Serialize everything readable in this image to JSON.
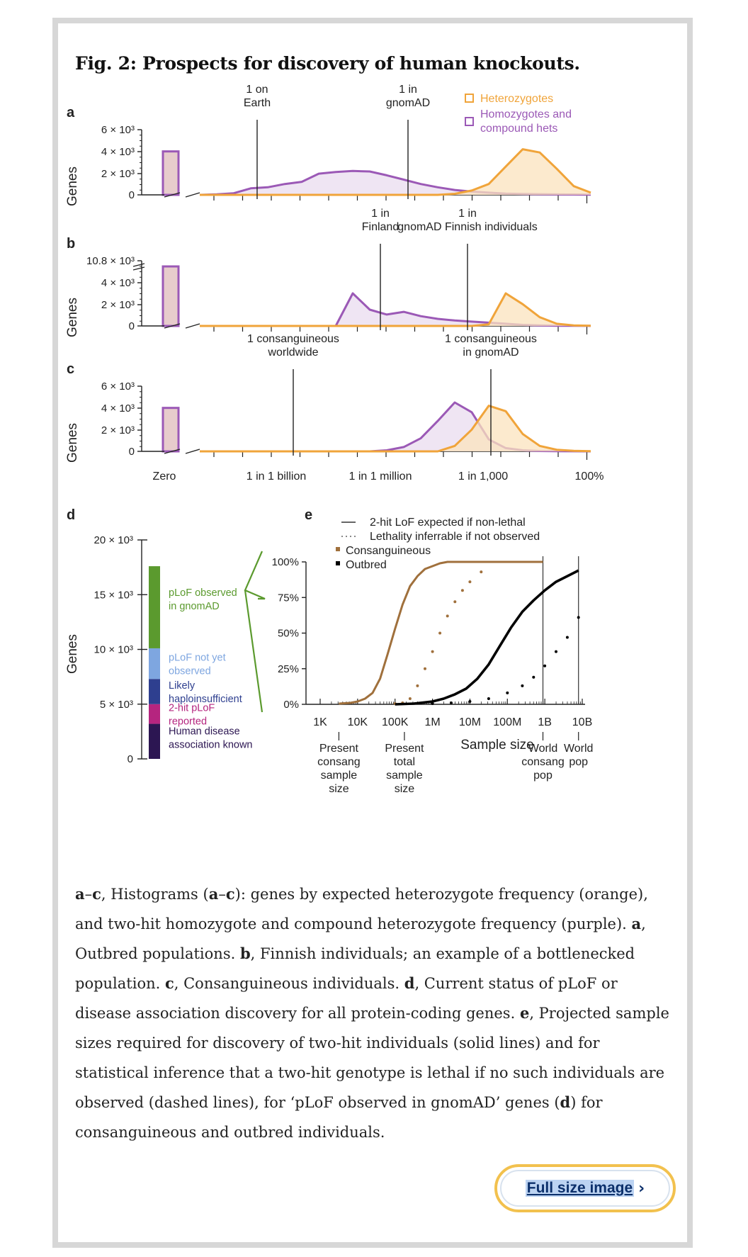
{
  "figure": {
    "title": "Fig. 2: Prospects for discovery of human knockouts.",
    "colors": {
      "heterozygote": "#f0a43a",
      "heterozygote_fill": "#fbe3bd",
      "homozygote": "#9b59b6",
      "homozygote_fill": "#e9dcef",
      "zero_bar_fill": "#e7cccc",
      "consanguineous": "#a0703c",
      "outbred": "#000000",
      "plof_observed": "#5b9a2e",
      "plof_not_yet": "#7ea6e0",
      "haploinsufficient": "#2e3f8f",
      "two_hit": "#b5257f",
      "disease_known": "#2c1652"
    },
    "panel_labels": [
      "a",
      "b",
      "c",
      "d",
      "e"
    ],
    "ylabel": "Genes",
    "legend_abc": [
      "Heterozygotes",
      "Homozygotes and",
      "compound hets"
    ]
  },
  "chart_data": [
    {
      "panel": "a",
      "type": "area",
      "ylabel": "Genes",
      "yticks": [
        "6 × 10³",
        "4 × 10³",
        "2 × 10³",
        "0"
      ],
      "ylim": [
        0,
        6000
      ],
      "zero_bar": 4000,
      "annotations": [
        {
          "lines": [
            "1 on",
            "Earth"
          ],
          "at": 1.35
        },
        {
          "lines": [
            "1 in",
            "gnomAD"
          ],
          "at": 4.9
        }
      ],
      "x": [
        0,
        0.4,
        0.8,
        1.2,
        1.6,
        2.0,
        2.4,
        2.8,
        3.2,
        3.6,
        4.0,
        4.4,
        4.8,
        5.2,
        5.6,
        6.0,
        6.4,
        6.8,
        7.2,
        7.6,
        8.0,
        8.4,
        8.8,
        9.2
      ],
      "series": [
        {
          "name": "Homozygotes and compound hets",
          "values": [
            0,
            50,
            150,
            600,
            700,
            1000,
            1200,
            1950,
            2100,
            2200,
            2150,
            1800,
            1400,
            1000,
            700,
            450,
            300,
            200,
            120,
            80,
            60,
            40,
            30,
            20
          ]
        },
        {
          "name": "Heterozygotes",
          "values": [
            0,
            0,
            0,
            0,
            0,
            0,
            0,
            0,
            0,
            0,
            0,
            0,
            0,
            0,
            0,
            100,
            400,
            1000,
            2600,
            4200,
            3900,
            2400,
            800,
            200
          ]
        }
      ]
    },
    {
      "panel": "b",
      "type": "area",
      "ylabel": "Genes",
      "yticks": [
        "10.8 × 10³",
        "4 × 10³",
        "2 × 10³",
        "0"
      ],
      "ylim": [
        0,
        6000
      ],
      "zero_bar": 10800,
      "annotations": [
        {
          "lines": [
            "1 in",
            "Finland"
          ],
          "at": 4.25
        },
        {
          "lines": [
            "1 in",
            "gnomAD Finnish individuals"
          ],
          "at": 6.3
        }
      ],
      "x": [
        0,
        0.4,
        0.8,
        1.2,
        1.6,
        2.0,
        2.4,
        2.8,
        3.2,
        3.6,
        4.0,
        4.4,
        4.8,
        5.2,
        5.6,
        6.0,
        6.4,
        6.8,
        7.2,
        7.6,
        8.0,
        8.4,
        8.8,
        9.2
      ],
      "series": [
        {
          "name": "Homozygotes and compound hets",
          "values": [
            0,
            0,
            0,
            0,
            0,
            0,
            0,
            0,
            0,
            3000,
            1500,
            1050,
            1300,
            900,
            650,
            500,
            400,
            300,
            200,
            100,
            50,
            20,
            10,
            5
          ]
        },
        {
          "name": "Heterozygotes",
          "values": [
            0,
            0,
            0,
            0,
            0,
            0,
            0,
            0,
            0,
            0,
            0,
            0,
            0,
            0,
            0,
            0,
            0,
            150,
            3000,
            2000,
            800,
            200,
            50,
            10
          ]
        }
      ]
    },
    {
      "panel": "c",
      "type": "area",
      "ylabel": "Genes",
      "yticks": [
        "6 × 10³",
        "4 × 10³",
        "2 × 10³",
        "0"
      ],
      "ylim": [
        0,
        6000
      ],
      "zero_bar": 4000,
      "annotations": [
        {
          "lines": [
            "1 consanguineous",
            "worldwide"
          ],
          "at": 2.2
        },
        {
          "lines": [
            "1 consanguineous",
            "in gnomAD"
          ],
          "at": 6.85
        }
      ],
      "x": [
        0,
        0.4,
        0.8,
        1.2,
        1.6,
        2.0,
        2.4,
        2.8,
        3.2,
        3.6,
        4.0,
        4.4,
        4.8,
        5.2,
        5.6,
        6.0,
        6.4,
        6.8,
        7.2,
        7.6,
        8.0,
        8.4,
        8.8,
        9.2
      ],
      "series": [
        {
          "name": "Homozygotes and compound hets",
          "values": [
            0,
            0,
            0,
            0,
            0,
            0,
            0,
            0,
            0,
            0,
            0,
            100,
            400,
            1200,
            2800,
            4500,
            3600,
            1100,
            300,
            100,
            30,
            10,
            5,
            0
          ]
        },
        {
          "name": "Heterozygotes",
          "values": [
            0,
            0,
            0,
            0,
            0,
            0,
            0,
            0,
            0,
            0,
            0,
            0,
            0,
            0,
            0,
            500,
            2000,
            4200,
            3700,
            1600,
            500,
            150,
            50,
            10
          ]
        }
      ],
      "xtick_labels": [
        "Zero",
        "1 in 1 billion",
        "1 in 1 million",
        "1 in 1,000",
        "100%"
      ]
    },
    {
      "panel": "d",
      "type": "bar",
      "ylabel": "Genes",
      "yticks": [
        "20 × 10³",
        "15 × 10³",
        "10 × 10³",
        "5 × 10³",
        "0"
      ],
      "ylim": [
        0,
        20000
      ],
      "segments": [
        {
          "name": "Human disease association known",
          "value": 3200
        },
        {
          "name": "2-hit pLoF reported",
          "value": 1800
        },
        {
          "name": "Likely haploinsufficient",
          "value": 2300
        },
        {
          "name": "pLoF not yet observed",
          "value": 2800
        },
        {
          "name": "pLoF observed in gnomAD",
          "value": 7500
        }
      ],
      "segment_labels": [
        {
          "lines": [
            "Human disease",
            "association known"
          ]
        },
        {
          "lines": [
            "2-hit pLoF",
            "reported"
          ]
        },
        {
          "lines": [
            "Likely",
            "haploinsufficient"
          ]
        },
        {
          "lines": [
            "pLoF not yet",
            "observed"
          ]
        },
        {
          "lines": [
            "pLoF observed",
            "in gnomAD"
          ]
        }
      ]
    },
    {
      "panel": "e",
      "type": "line",
      "xlabel": "Sample size",
      "yticks": [
        "100%",
        "75%",
        "50%",
        "25%",
        "0%"
      ],
      "xtick_labels": [
        "1K",
        "10K",
        "100K",
        "1M",
        "10M",
        "100M",
        "1B",
        "10B"
      ],
      "xscale": "log",
      "ylim": [
        0,
        100
      ],
      "legend": [
        {
          "name": "2-hit LoF expected if non-lethal",
          "style": "solid line"
        },
        {
          "name": "Lethality inferrable if not observed",
          "style": "dotted line"
        },
        {
          "name": "Consanguineous",
          "style": "square"
        },
        {
          "name": "Outbred",
          "style": "square"
        }
      ],
      "bottom_annotations": [
        {
          "lines": [
            "Present",
            "consang",
            "sample",
            "size"
          ],
          "at_log10": 3.5
        },
        {
          "lines": [
            "Present",
            "total",
            "sample",
            "size"
          ],
          "at_log10": 5.25
        },
        {
          "lines": [
            "World",
            "consang",
            "pop"
          ],
          "at_log10": 8.95
        },
        {
          "lines": [
            "World",
            "pop"
          ],
          "at_log10": 9.9
        }
      ],
      "series": [
        {
          "name": "Consanguineous 2-hit LoF expected",
          "style": "solid",
          "x": [
            3.5,
            3.8,
            4.0,
            4.2,
            4.4,
            4.6,
            4.8,
            5.0,
            5.2,
            5.4,
            5.6,
            5.8,
            6.0,
            6.2,
            6.4,
            6.6,
            7.0,
            8.0,
            8.95
          ],
          "y": [
            0.5,
            1,
            2,
            4,
            8,
            18,
            35,
            53,
            70,
            83,
            90,
            95,
            97,
            99,
            100,
            100,
            100,
            100,
            100
          ]
        },
        {
          "name": "Consanguineous lethality inferrable",
          "style": "dotted",
          "x": [
            5.0,
            5.2,
            5.4,
            5.6,
            5.8,
            6.0,
            6.2,
            6.4,
            6.6,
            6.8,
            7.0,
            7.3
          ],
          "y": [
            0.5,
            1,
            4,
            13,
            25,
            37,
            50,
            62,
            72,
            80,
            86,
            93
          ]
        },
        {
          "name": "Outbred 2-hit LoF expected",
          "style": "solid",
          "x": [
            5.0,
            5.5,
            6.0,
            6.3,
            6.6,
            6.9,
            7.2,
            7.5,
            7.8,
            8.1,
            8.4,
            8.7,
            9.0,
            9.3,
            9.6,
            9.9
          ],
          "y": [
            0,
            0.5,
            2,
            4,
            7,
            11,
            18,
            28,
            41,
            54,
            65,
            73,
            80,
            86,
            90,
            94
          ]
        },
        {
          "name": "Outbred lethality inferrable",
          "style": "dotted",
          "x": [
            6.0,
            6.5,
            7.0,
            7.5,
            8.0,
            8.4,
            8.7,
            9.0,
            9.3,
            9.6,
            9.9
          ],
          "y": [
            0.5,
            1,
            2,
            4,
            8,
            13,
            19,
            27,
            37,
            47,
            61
          ]
        }
      ]
    }
  ],
  "caption": {
    "segments": [
      {
        "text": "a",
        "bold": true
      },
      {
        "text": "–",
        "bold": false
      },
      {
        "text": "c",
        "bold": true
      },
      {
        "text": ", Histograms (",
        "bold": false
      },
      {
        "text": "a",
        "bold": true
      },
      {
        "text": "–",
        "bold": false
      },
      {
        "text": "c",
        "bold": true
      },
      {
        "text": "): genes by expected heterozygote frequency (orange), and two-hit homozygote and compound heterozygote frequency (purple). ",
        "bold": false
      },
      {
        "text": "a",
        "bold": true
      },
      {
        "text": ", Outbred populations. ",
        "bold": false
      },
      {
        "text": "b",
        "bold": true
      },
      {
        "text": ", Finnish individuals; an example of a bottlenecked population. ",
        "bold": false
      },
      {
        "text": "c",
        "bold": true
      },
      {
        "text": ", Consanguineous individuals. ",
        "bold": false
      },
      {
        "text": "d",
        "bold": true
      },
      {
        "text": ", Current status of pLoF or disease association discovery for all protein-coding genes. ",
        "bold": false
      },
      {
        "text": "e",
        "bold": true
      },
      {
        "text": ", Projected sample sizes required for discovery of two-hit individuals (solid lines) and for statistical inference that a two-hit genotype is lethal if no such individuals are observed (dashed lines), for ‘pLoF observed in gnomAD’ genes (",
        "bold": false
      },
      {
        "text": "d",
        "bold": true
      },
      {
        "text": ") for consanguineous and outbred individuals.",
        "bold": false
      }
    ]
  },
  "link": {
    "label": "Full size image",
    "icon": "chevron-right-icon",
    "glyph": "›"
  }
}
